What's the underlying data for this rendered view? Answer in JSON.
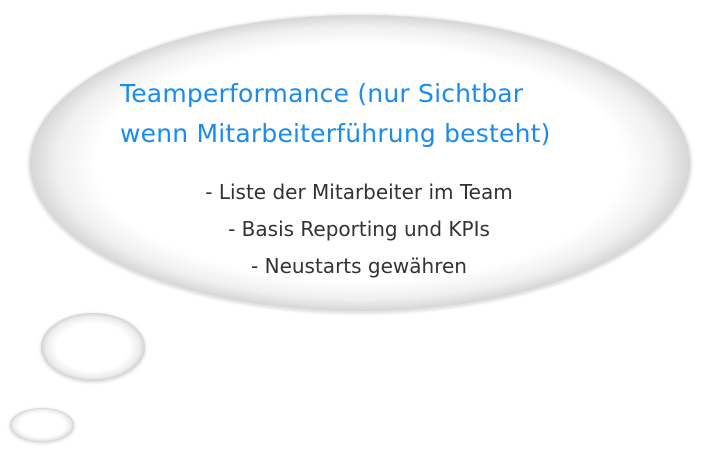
{
  "bubble": {
    "title_line_1": "Teamperformance (nur Sichtbar",
    "title_line_2": "wenn Mitarbeiterführung besteht)",
    "items": [
      "- Liste der Mitarbeiter im Team",
      "- Basis Reporting und KPIs",
      "- Neustarts gewähren"
    ]
  },
  "colors": {
    "title": "#1a8cf0",
    "text": "#333333",
    "bubble_fill": "#ffffff",
    "bubble_edge": "#d9d9d9"
  }
}
